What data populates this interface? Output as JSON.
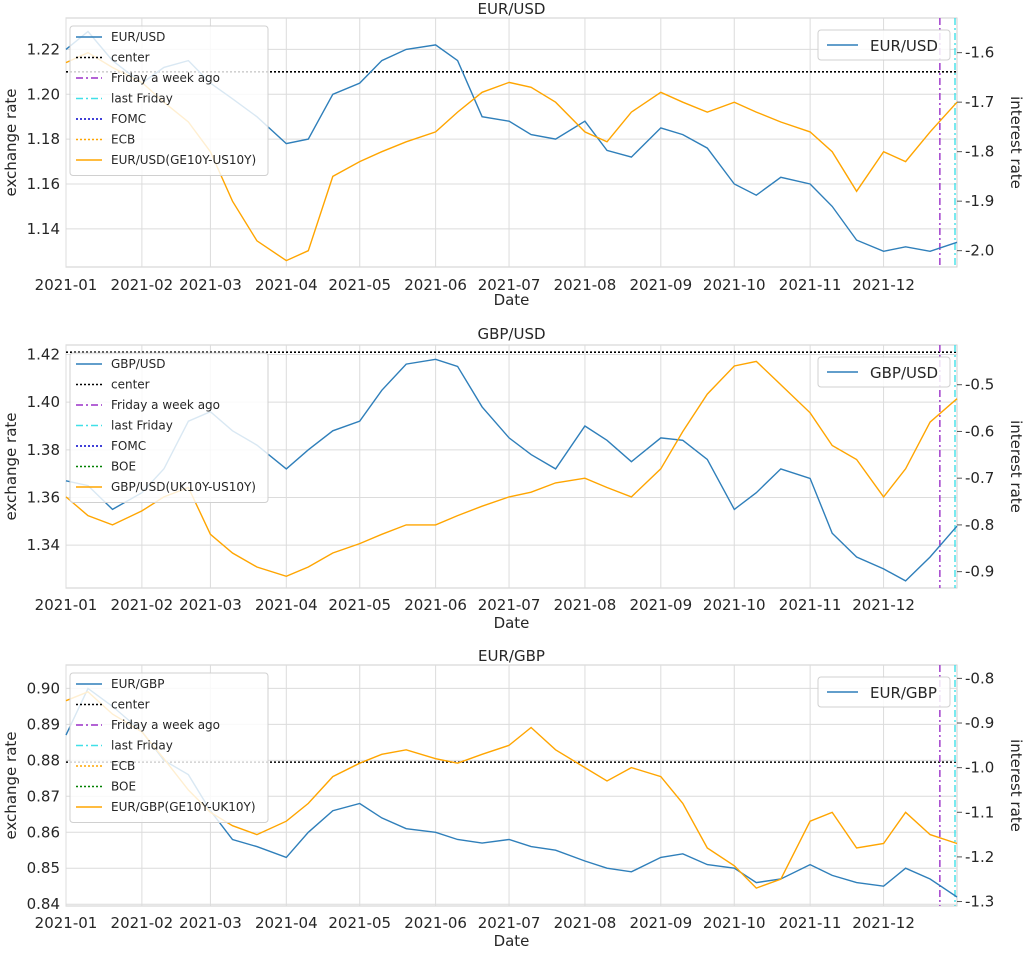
{
  "colors": {
    "eur_usd_line": "#2f7fba",
    "rate_line": "#ffa500",
    "center_line": "#000000",
    "week_ago_line": "#9b30c8",
    "last_friday_line": "#40e0e8",
    "fomc_line": "#0000cc",
    "boe_line": "#008000",
    "grid": "#dcdcdc"
  },
  "chart_data": [
    {
      "type": "line",
      "title": "EUR/USD",
      "xlabel": "Date",
      "ylabel": "exchange rate",
      "y2label": "interest rate",
      "grid": true,
      "x_ticks": [
        "2021-01",
        "2021-02",
        "2021-03",
        "2021-04",
        "2021-05",
        "2021-06",
        "2021-07",
        "2021-08",
        "2021-09",
        "2021-10",
        "2021-11",
        "2021-12"
      ],
      "y_ticks": [
        "1.14",
        "1.16",
        "1.18",
        "1.20",
        "1.22"
      ],
      "y2_ticks": [
        "-2.0",
        "-1.9",
        "-1.8",
        "-1.7",
        "-1.6"
      ],
      "ylim": [
        1.123,
        1.234
      ],
      "y2lim": [
        -2.033,
        -1.53
      ],
      "center": 1.21,
      "legend_left": {
        "position": "upper-left",
        "entries": [
          {
            "label": "EUR/USD",
            "style": "solid",
            "color": "#2f7fba"
          },
          {
            "label": "center",
            "style": "dotted",
            "color": "#000000"
          },
          {
            "label": "Friday a week ago",
            "style": "dashdot",
            "color": "#9b30c8"
          },
          {
            "label": "last Friday",
            "style": "dashdot",
            "color": "#40e0e8"
          },
          {
            "label": "FOMC",
            "style": "dotted",
            "color": "#0000cc"
          },
          {
            "label": "ECB",
            "style": "dotted",
            "color": "#ffa500"
          },
          {
            "label": "EUR/USD(GE10Y-US10Y)",
            "style": "solid",
            "color": "#ffa500"
          }
        ]
      },
      "legend_right": {
        "position": "upper-right",
        "entries": [
          {
            "label": "EUR/USD",
            "style": "solid",
            "color": "#2f7fba"
          }
        ]
      },
      "series": [
        {
          "name": "EUR/USD",
          "axis": "left",
          "color": "#2f7fba",
          "x": [
            "2021-01-01",
            "2021-01-10",
            "2021-01-20",
            "2021-02-01",
            "2021-02-10",
            "2021-02-20",
            "2021-03-01",
            "2021-03-10",
            "2021-03-20",
            "2021-04-01",
            "2021-04-10",
            "2021-04-20",
            "2021-05-01",
            "2021-05-10",
            "2021-05-20",
            "2021-06-01",
            "2021-06-10",
            "2021-06-20",
            "2021-07-01",
            "2021-07-10",
            "2021-07-20",
            "2021-08-01",
            "2021-08-10",
            "2021-08-20",
            "2021-09-01",
            "2021-09-10",
            "2021-09-20",
            "2021-10-01",
            "2021-10-10",
            "2021-10-20",
            "2021-11-01",
            "2021-11-10",
            "2021-11-20",
            "2021-12-01",
            "2021-12-10",
            "2021-12-20",
            "2021-12-31"
          ],
          "y": [
            1.22,
            1.228,
            1.215,
            1.205,
            1.212,
            1.215,
            1.205,
            1.198,
            1.19,
            1.178,
            1.18,
            1.2,
            1.205,
            1.215,
            1.22,
            1.222,
            1.215,
            1.19,
            1.188,
            1.182,
            1.18,
            1.188,
            1.175,
            1.172,
            1.185,
            1.182,
            1.176,
            1.16,
            1.155,
            1.163,
            1.16,
            1.15,
            1.135,
            1.13,
            1.132,
            1.13,
            1.134
          ]
        },
        {
          "name": "EUR/USD(GE10Y-US10Y)",
          "axis": "right",
          "color": "#ffa500",
          "x": [
            "2021-01-01",
            "2021-01-10",
            "2021-01-20",
            "2021-02-01",
            "2021-02-10",
            "2021-02-20",
            "2021-03-01",
            "2021-03-10",
            "2021-03-20",
            "2021-04-01",
            "2021-04-10",
            "2021-04-20",
            "2021-05-01",
            "2021-05-10",
            "2021-05-20",
            "2021-06-01",
            "2021-06-10",
            "2021-06-20",
            "2021-07-01",
            "2021-07-10",
            "2021-07-20",
            "2021-08-01",
            "2021-08-10",
            "2021-08-20",
            "2021-09-01",
            "2021-09-10",
            "2021-09-20",
            "2021-10-01",
            "2021-10-10",
            "2021-10-20",
            "2021-11-01",
            "2021-11-10",
            "2021-11-20",
            "2021-12-01",
            "2021-12-10",
            "2021-12-20",
            "2021-12-31"
          ],
          "y": [
            -1.62,
            -1.6,
            -1.63,
            -1.66,
            -1.7,
            -1.74,
            -1.8,
            -1.9,
            -1.98,
            -2.02,
            -2.0,
            -1.85,
            -1.82,
            -1.8,
            -1.78,
            -1.76,
            -1.72,
            -1.68,
            -1.66,
            -1.67,
            -1.7,
            -1.76,
            -1.78,
            -1.72,
            -1.68,
            -1.7,
            -1.72,
            -1.7,
            -1.72,
            -1.74,
            -1.76,
            -1.8,
            -1.88,
            -1.8,
            -1.82,
            -1.76,
            -1.7
          ]
        }
      ]
    },
    {
      "type": "line",
      "title": "GBP/USD",
      "xlabel": "Date",
      "ylabel": "exchange rate",
      "y2label": "interest rate",
      "grid": true,
      "x_ticks": [
        "2021-01",
        "2021-02",
        "2021-03",
        "2021-04",
        "2021-05",
        "2021-06",
        "2021-07",
        "2021-08",
        "2021-09",
        "2021-10",
        "2021-11",
        "2021-12"
      ],
      "y_ticks": [
        "1.34",
        "1.36",
        "1.38",
        "1.40",
        "1.42"
      ],
      "y2_ticks": [
        "-0.9",
        "-0.8",
        "-0.7",
        "-0.6",
        "-0.5"
      ],
      "ylim": [
        1.322,
        1.424
      ],
      "y2lim": [
        -0.935,
        -0.415
      ],
      "center": 1.421,
      "legend_left": {
        "position": "upper-left",
        "entries": [
          {
            "label": "GBP/USD",
            "style": "solid",
            "color": "#2f7fba"
          },
          {
            "label": "center",
            "style": "dotted",
            "color": "#000000"
          },
          {
            "label": "Friday a week ago",
            "style": "dashdot",
            "color": "#9b30c8"
          },
          {
            "label": "last Friday",
            "style": "dashdot",
            "color": "#40e0e8"
          },
          {
            "label": "FOMC",
            "style": "dotted",
            "color": "#0000cc"
          },
          {
            "label": "BOE",
            "style": "dotted",
            "color": "#008000"
          },
          {
            "label": "GBP/USD(UK10Y-US10Y)",
            "style": "solid",
            "color": "#ffa500"
          }
        ]
      },
      "legend_right": {
        "position": "upper-right",
        "entries": [
          {
            "label": "GBP/USD",
            "style": "solid",
            "color": "#2f7fba"
          }
        ]
      },
      "series": [
        {
          "name": "GBP/USD",
          "axis": "left",
          "color": "#2f7fba",
          "x": [
            "2021-01-01",
            "2021-01-10",
            "2021-01-20",
            "2021-02-01",
            "2021-02-10",
            "2021-02-20",
            "2021-03-01",
            "2021-03-10",
            "2021-03-20",
            "2021-04-01",
            "2021-04-10",
            "2021-04-20",
            "2021-05-01",
            "2021-05-10",
            "2021-05-20",
            "2021-06-01",
            "2021-06-10",
            "2021-06-20",
            "2021-07-01",
            "2021-07-10",
            "2021-07-20",
            "2021-08-01",
            "2021-08-10",
            "2021-08-20",
            "2021-09-01",
            "2021-09-10",
            "2021-09-20",
            "2021-10-01",
            "2021-10-10",
            "2021-10-20",
            "2021-11-01",
            "2021-11-10",
            "2021-11-20",
            "2021-12-01",
            "2021-12-10",
            "2021-12-20",
            "2021-12-31"
          ],
          "y": [
            1.367,
            1.365,
            1.355,
            1.362,
            1.372,
            1.392,
            1.396,
            1.388,
            1.382,
            1.372,
            1.38,
            1.388,
            1.392,
            1.405,
            1.416,
            1.418,
            1.415,
            1.398,
            1.385,
            1.378,
            1.372,
            1.39,
            1.384,
            1.375,
            1.385,
            1.384,
            1.376,
            1.355,
            1.362,
            1.372,
            1.368,
            1.345,
            1.335,
            1.33,
            1.325,
            1.335,
            1.348
          ]
        },
        {
          "name": "GBP/USD(UK10Y-US10Y)",
          "axis": "right",
          "color": "#ffa500",
          "x": [
            "2021-01-01",
            "2021-01-10",
            "2021-01-20",
            "2021-02-01",
            "2021-02-10",
            "2021-02-20",
            "2021-03-01",
            "2021-03-10",
            "2021-03-20",
            "2021-04-01",
            "2021-04-10",
            "2021-04-20",
            "2021-05-01",
            "2021-05-10",
            "2021-05-20",
            "2021-06-01",
            "2021-06-10",
            "2021-06-20",
            "2021-07-01",
            "2021-07-10",
            "2021-07-20",
            "2021-08-01",
            "2021-08-10",
            "2021-08-20",
            "2021-09-01",
            "2021-09-10",
            "2021-09-20",
            "2021-10-01",
            "2021-10-10",
            "2021-10-20",
            "2021-11-01",
            "2021-11-10",
            "2021-11-20",
            "2021-12-01",
            "2021-12-10",
            "2021-12-20",
            "2021-12-31"
          ],
          "y": [
            -0.74,
            -0.78,
            -0.8,
            -0.77,
            -0.74,
            -0.72,
            -0.82,
            -0.86,
            -0.89,
            -0.91,
            -0.89,
            -0.86,
            -0.84,
            -0.82,
            -0.8,
            -0.8,
            -0.78,
            -0.76,
            -0.74,
            -0.73,
            -0.71,
            -0.7,
            -0.72,
            -0.74,
            -0.68,
            -0.6,
            -0.52,
            -0.46,
            -0.45,
            -0.5,
            -0.56,
            -0.63,
            -0.66,
            -0.74,
            -0.68,
            -0.58,
            -0.53
          ]
        }
      ]
    },
    {
      "type": "line",
      "title": "EUR/GBP",
      "xlabel": "Date",
      "ylabel": "exchange rate",
      "y2label": "interest rate",
      "grid": true,
      "x_ticks": [
        "2021-01",
        "2021-02",
        "2021-03",
        "2021-04",
        "2021-05",
        "2021-06",
        "2021-07",
        "2021-08",
        "2021-09",
        "2021-10",
        "2021-11",
        "2021-12"
      ],
      "y_ticks": [
        "0.84",
        "0.85",
        "0.86",
        "0.87",
        "0.88",
        "0.89",
        "0.90"
      ],
      "y2_ticks": [
        "-1.3",
        "-1.2",
        "-1.1",
        "-1.0",
        "-0.9",
        "-0.8"
      ],
      "ylim": [
        0.8395,
        0.9065
      ],
      "y2lim": [
        -1.31,
        -0.77
      ],
      "center": 0.8795,
      "legend_left": {
        "position": "upper-left",
        "entries": [
          {
            "label": "EUR/GBP",
            "style": "solid",
            "color": "#2f7fba"
          },
          {
            "label": "center",
            "style": "dotted",
            "color": "#000000"
          },
          {
            "label": "Friday a week ago",
            "style": "dashdot",
            "color": "#9b30c8"
          },
          {
            "label": "last Friday",
            "style": "dashdot",
            "color": "#40e0e8"
          },
          {
            "label": "ECB",
            "style": "dotted",
            "color": "#ffa500"
          },
          {
            "label": "BOE",
            "style": "dotted",
            "color": "#008000"
          },
          {
            "label": "EUR/GBP(GE10Y-UK10Y)",
            "style": "solid",
            "color": "#ffa500"
          }
        ]
      },
      "legend_right": {
        "position": "upper-right",
        "entries": [
          {
            "label": "EUR/GBP",
            "style": "solid",
            "color": "#2f7fba"
          }
        ]
      },
      "series": [
        {
          "name": "EUR/GBP",
          "axis": "left",
          "color": "#2f7fba",
          "x": [
            "2021-01-01",
            "2021-01-10",
            "2021-01-20",
            "2021-02-01",
            "2021-02-10",
            "2021-02-20",
            "2021-03-01",
            "2021-03-10",
            "2021-03-20",
            "2021-04-01",
            "2021-04-10",
            "2021-04-20",
            "2021-05-01",
            "2021-05-10",
            "2021-05-20",
            "2021-06-01",
            "2021-06-10",
            "2021-06-20",
            "2021-07-01",
            "2021-07-10",
            "2021-07-20",
            "2021-08-01",
            "2021-08-10",
            "2021-08-20",
            "2021-09-01",
            "2021-09-10",
            "2021-09-20",
            "2021-10-01",
            "2021-10-10",
            "2021-10-20",
            "2021-11-01",
            "2021-11-10",
            "2021-11-20",
            "2021-12-01",
            "2021-12-10",
            "2021-12-20",
            "2021-12-31"
          ],
          "y": [
            0.887,
            0.9,
            0.895,
            0.888,
            0.88,
            0.876,
            0.866,
            0.858,
            0.856,
            0.853,
            0.86,
            0.866,
            0.868,
            0.864,
            0.861,
            0.86,
            0.858,
            0.857,
            0.858,
            0.856,
            0.855,
            0.852,
            0.85,
            0.849,
            0.853,
            0.854,
            0.851,
            0.85,
            0.846,
            0.847,
            0.851,
            0.848,
            0.846,
            0.845,
            0.85,
            0.847,
            0.842
          ]
        },
        {
          "name": "EUR/GBP(GE10Y-UK10Y)",
          "axis": "right",
          "color": "#ffa500",
          "x": [
            "2021-01-01",
            "2021-01-10",
            "2021-01-20",
            "2021-02-01",
            "2021-02-10",
            "2021-02-20",
            "2021-03-01",
            "2021-03-10",
            "2021-03-20",
            "2021-04-01",
            "2021-04-10",
            "2021-04-20",
            "2021-05-01",
            "2021-05-10",
            "2021-05-20",
            "2021-06-01",
            "2021-06-10",
            "2021-06-20",
            "2021-07-01",
            "2021-07-10",
            "2021-07-20",
            "2021-08-01",
            "2021-08-10",
            "2021-08-20",
            "2021-09-01",
            "2021-09-10",
            "2021-09-20",
            "2021-10-01",
            "2021-10-10",
            "2021-10-20",
            "2021-11-01",
            "2021-11-10",
            "2021-11-20",
            "2021-12-01",
            "2021-12-10",
            "2021-12-20",
            "2021-12-31"
          ],
          "y": [
            -0.85,
            -0.83,
            -0.88,
            -0.92,
            -0.98,
            -1.05,
            -1.1,
            -1.13,
            -1.15,
            -1.12,
            -1.08,
            -1.02,
            -0.99,
            -0.97,
            -0.96,
            -0.98,
            -0.99,
            -0.97,
            -0.95,
            -0.91,
            -0.96,
            -1.0,
            -1.03,
            -1.0,
            -1.02,
            -1.08,
            -1.18,
            -1.22,
            -1.27,
            -1.25,
            -1.12,
            -1.1,
            -1.18,
            -1.17,
            -1.1,
            -1.15,
            -1.17
          ]
        }
      ]
    }
  ]
}
